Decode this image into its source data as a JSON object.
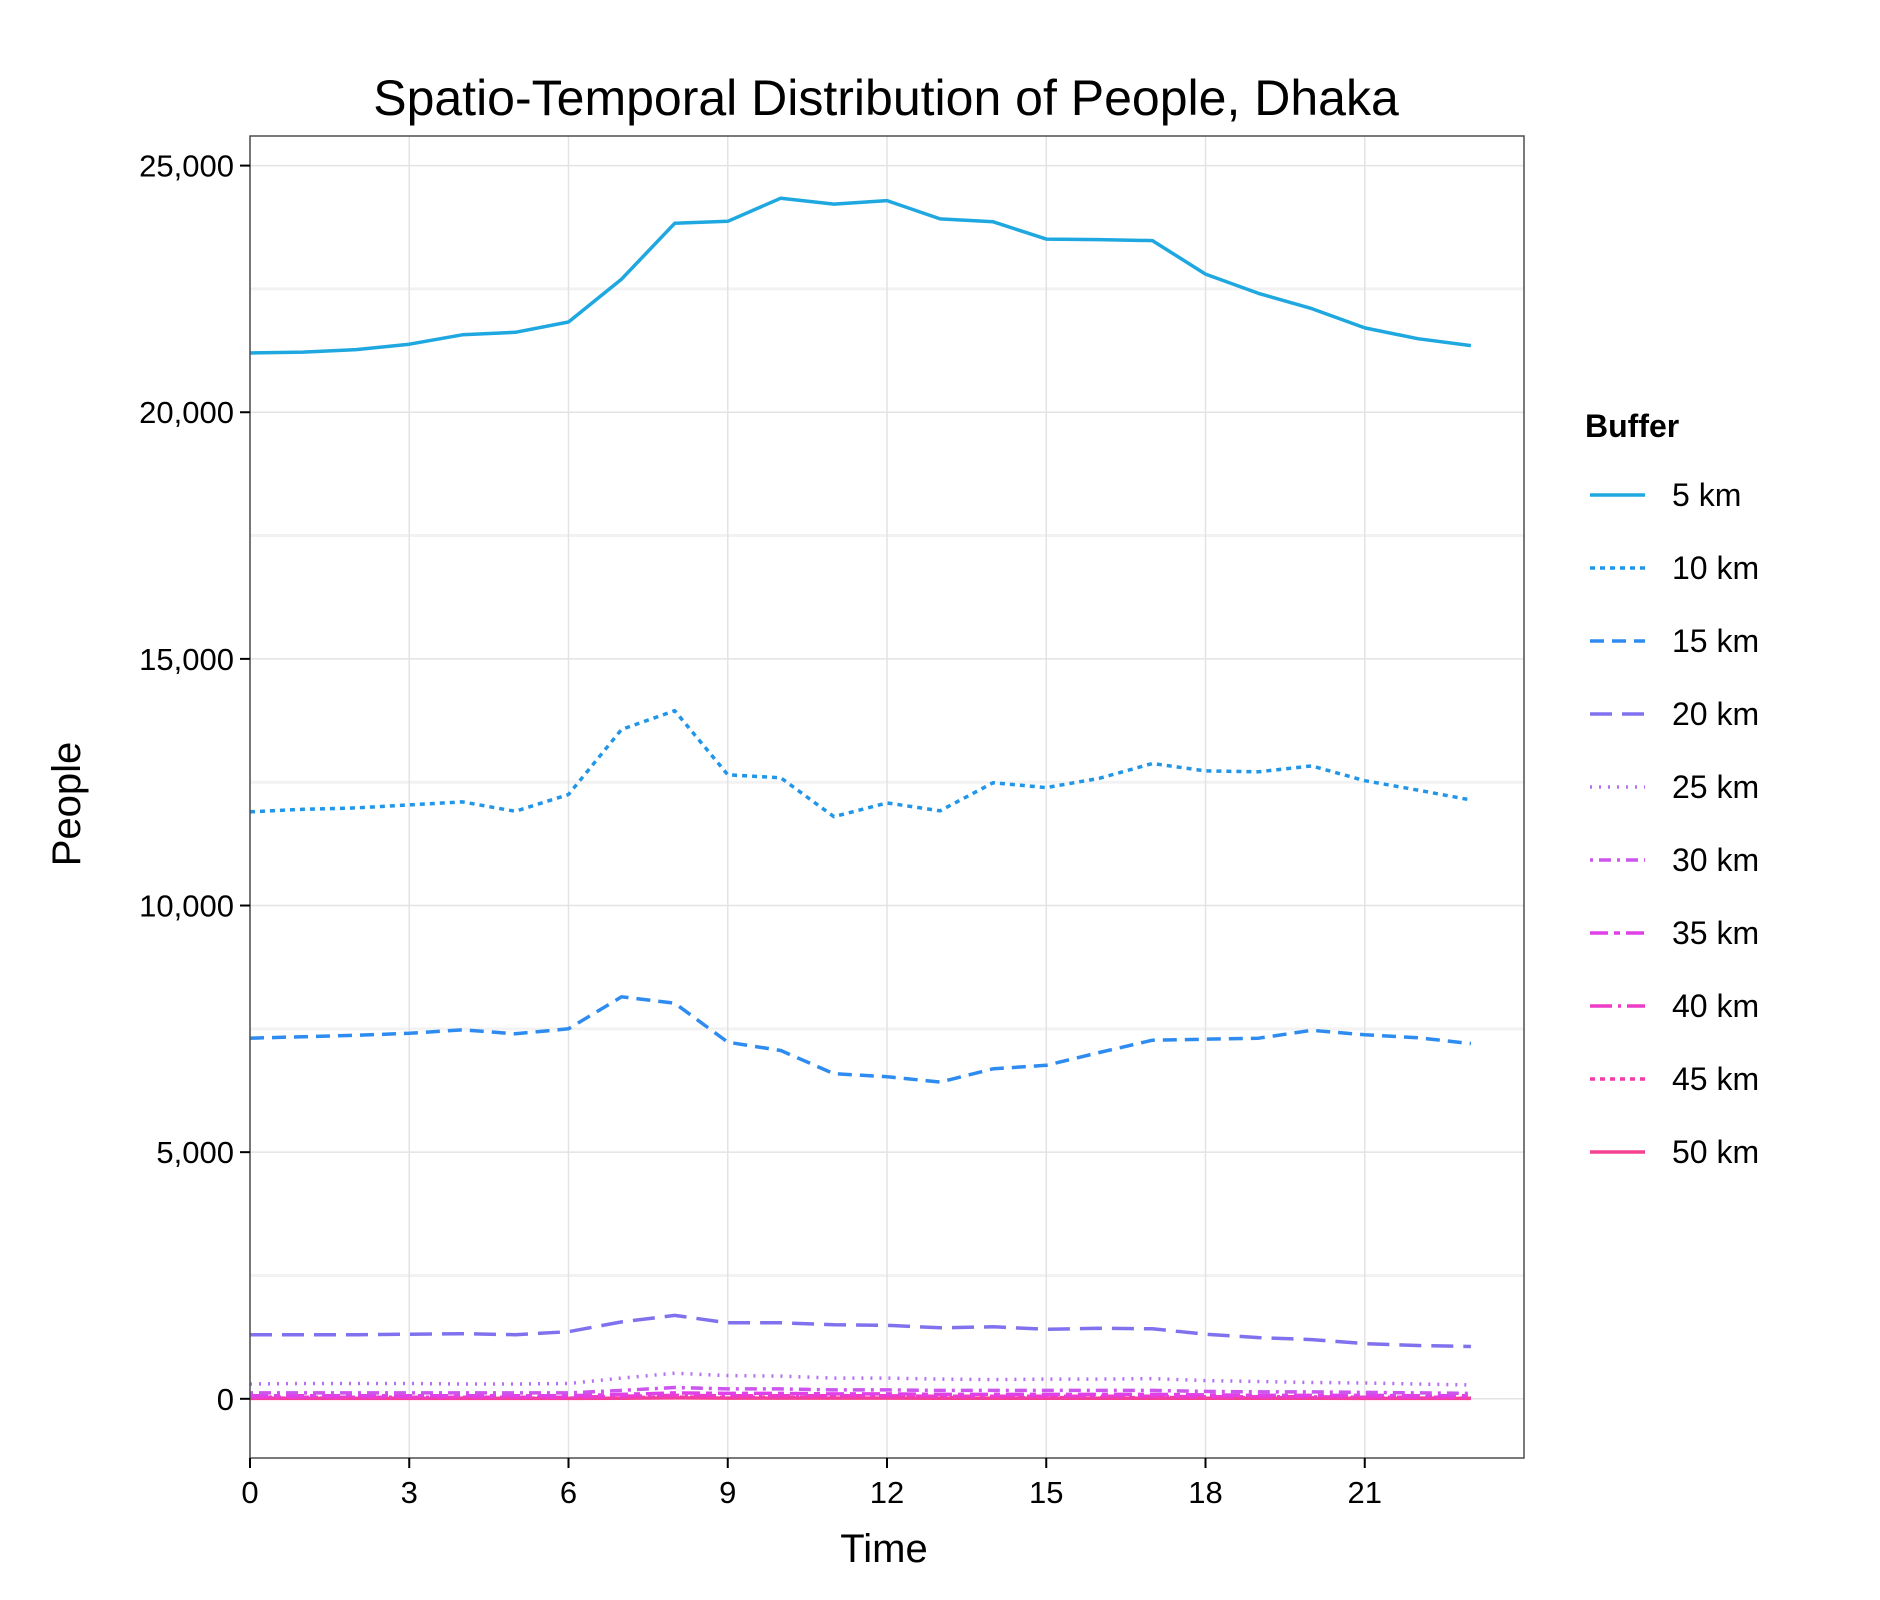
{
  "chart_data": {
    "type": "line",
    "title": "Spatio-Temporal Distribution of People, Dhaka",
    "xlabel": "Time",
    "ylabel": "People",
    "xlim": [
      0,
      24
    ],
    "ylim": [
      -1200,
      25600
    ],
    "x_ticks": [
      0,
      3,
      6,
      9,
      12,
      15,
      18,
      21
    ],
    "x_tick_labels": [
      "0",
      "3",
      "6",
      "9",
      "12",
      "15",
      "18",
      "21"
    ],
    "y_ticks": [
      0,
      5000,
      10000,
      15000,
      20000,
      25000
    ],
    "y_tick_labels": [
      "0",
      "5,000",
      "10,000",
      "15,000",
      "20,000",
      "25,000"
    ],
    "grid": true,
    "legend": {
      "title": "Buffer",
      "position": "right"
    },
    "x": [
      0,
      1,
      2,
      3,
      4,
      5,
      6,
      7,
      8,
      9,
      10,
      11,
      12,
      13,
      14,
      15,
      16,
      17,
      18,
      19,
      20,
      21,
      22,
      23
    ],
    "series": [
      {
        "name": "5 km",
        "color": "#1fa8e0",
        "dash": "solid",
        "values": [
          21200,
          21220,
          21270,
          21380,
          21570,
          21620,
          21830,
          22700,
          23830,
          23870,
          24340,
          24220,
          24290,
          23920,
          23860,
          23510,
          23500,
          23480,
          22800,
          22410,
          22100,
          21710,
          21490,
          21350
        ]
      },
      {
        "name": "10 km",
        "color": "#2196e8",
        "dash": "dotted-short",
        "values": [
          11900,
          11950,
          11980,
          12040,
          12100,
          11910,
          12250,
          13570,
          13950,
          12650,
          12590,
          11800,
          12080,
          11920,
          12490,
          12390,
          12580,
          12880,
          12730,
          12710,
          12830,
          12530,
          12340,
          12140
        ]
      },
      {
        "name": "15 km",
        "color": "#2e8cf0",
        "dash": "dashed",
        "values": [
          7310,
          7340,
          7370,
          7410,
          7480,
          7400,
          7500,
          8150,
          8020,
          7230,
          7060,
          6590,
          6530,
          6420,
          6690,
          6760,
          7020,
          7270,
          7290,
          7310,
          7470,
          7380,
          7320,
          7200
        ]
      },
      {
        "name": "20 km",
        "color": "#8072ee",
        "dash": "long-dashed",
        "values": [
          1300,
          1300,
          1300,
          1310,
          1320,
          1300,
          1360,
          1560,
          1690,
          1540,
          1540,
          1500,
          1490,
          1440,
          1460,
          1410,
          1430,
          1420,
          1310,
          1240,
          1200,
          1120,
          1080,
          1060
        ]
      },
      {
        "name": "25 km",
        "color": "#b570f2",
        "dash": "dotted",
        "values": [
          300,
          310,
          310,
          310,
          300,
          300,
          310,
          420,
          520,
          470,
          460,
          420,
          420,
          400,
          390,
          400,
          400,
          410,
          370,
          350,
          330,
          320,
          300,
          280
        ]
      },
      {
        "name": "30 km",
        "color": "#cc55ee",
        "dash": "dot-dash",
        "values": [
          120,
          120,
          120,
          120,
          120,
          120,
          120,
          170,
          230,
          200,
          200,
          180,
          180,
          170,
          170,
          170,
          170,
          170,
          150,
          140,
          140,
          130,
          120,
          110
        ]
      },
      {
        "name": "35 km",
        "color": "#e040e8",
        "dash": "two-dash",
        "values": [
          60,
          60,
          60,
          60,
          60,
          60,
          60,
          90,
          120,
          110,
          110,
          100,
          100,
          90,
          90,
          90,
          90,
          90,
          80,
          70,
          70,
          70,
          60,
          60
        ]
      },
      {
        "name": "40 km",
        "color": "#ee3cc8",
        "dash": "long-dash-dot",
        "values": [
          30,
          30,
          30,
          30,
          30,
          30,
          30,
          50,
          70,
          60,
          60,
          60,
          60,
          50,
          50,
          50,
          50,
          50,
          40,
          40,
          40,
          30,
          30,
          30
        ]
      },
      {
        "name": "45 km",
        "color": "#f23ca8",
        "dash": "dotted-short",
        "values": [
          15,
          15,
          15,
          15,
          15,
          15,
          15,
          25,
          35,
          30,
          30,
          30,
          30,
          25,
          25,
          25,
          25,
          25,
          20,
          20,
          20,
          15,
          15,
          15
        ]
      },
      {
        "name": "50 km",
        "color": "#f5418f",
        "dash": "solid",
        "values": [
          8,
          8,
          8,
          8,
          8,
          8,
          8,
          12,
          18,
          15,
          15,
          15,
          15,
          12,
          12,
          12,
          12,
          12,
          10,
          10,
          10,
          8,
          8,
          8
        ]
      }
    ]
  }
}
